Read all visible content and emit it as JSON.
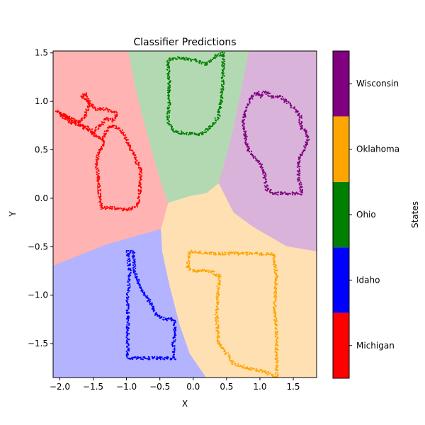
{
  "chart_data": {
    "type": "scatter",
    "title": "Classifier Predictions",
    "xlabel": "X",
    "ylabel": "Y",
    "xlim": [
      -2.1,
      1.85
    ],
    "ylim": [
      -1.85,
      1.52
    ],
    "xticks": [
      -2.0,
      -1.5,
      -1.0,
      -0.5,
      0.0,
      0.5,
      1.0,
      1.5
    ],
    "xtick_labels": [
      "−2.0",
      "−1.5",
      "−1.0",
      "−0.5",
      "0.0",
      "0.5",
      "1.0",
      "1.5"
    ],
    "yticks": [
      -1.5,
      -1.0,
      -0.5,
      0.0,
      0.5,
      1.0,
      1.5
    ],
    "ytick_labels": [
      "−1.5",
      "−1.0",
      "−0.5",
      "0.0",
      "0.5",
      "1.0",
      "1.5"
    ],
    "grid": false,
    "colorbar": {
      "label": "States",
      "classes": [
        {
          "name": "Michigan",
          "color": "#ff0000"
        },
        {
          "name": "Idaho",
          "color": "#0000ff"
        },
        {
          "name": "Ohio",
          "color": "#008000"
        },
        {
          "name": "Oklahoma",
          "color": "#ffa500"
        },
        {
          "name": "Wisconsin",
          "color": "#800080"
        }
      ]
    },
    "regions": [
      {
        "class": "Michigan",
        "fill": "#ffb3b3",
        "polygon": [
          [
            -2.1,
            1.52
          ],
          [
            -0.97,
            1.52
          ],
          [
            -0.85,
            1.1
          ],
          [
            -0.72,
            0.75
          ],
          [
            -0.58,
            0.4
          ],
          [
            -0.45,
            0.1
          ],
          [
            -0.37,
            -0.05
          ],
          [
            -0.42,
            -0.2
          ],
          [
            -0.48,
            -0.32
          ],
          [
            -1.3,
            -0.48
          ],
          [
            -2.1,
            -0.7
          ]
        ]
      },
      {
        "class": "Ohio",
        "fill": "#b3d9b3",
        "polygon": [
          [
            -0.97,
            1.52
          ],
          [
            0.84,
            1.52
          ],
          [
            0.72,
            1.1
          ],
          [
            0.6,
            0.7
          ],
          [
            0.45,
            0.3
          ],
          [
            0.38,
            0.15
          ],
          [
            0.2,
            0.05
          ],
          [
            -0.05,
            0.02
          ],
          [
            -0.37,
            -0.05
          ],
          [
            -0.45,
            0.1
          ],
          [
            -0.58,
            0.4
          ],
          [
            -0.72,
            0.75
          ],
          [
            -0.85,
            1.1
          ]
        ]
      },
      {
        "class": "Wisconsin",
        "fill": "#d9b3d9",
        "polygon": [
          [
            0.84,
            1.52
          ],
          [
            1.85,
            1.52
          ],
          [
            1.85,
            -0.55
          ],
          [
            1.4,
            -0.5
          ],
          [
            0.9,
            -0.3
          ],
          [
            0.6,
            -0.15
          ],
          [
            0.38,
            0.15
          ],
          [
            0.45,
            0.3
          ],
          [
            0.6,
            0.7
          ],
          [
            0.72,
            1.1
          ]
        ]
      },
      {
        "class": "Idaho",
        "fill": "#b3b3ff",
        "polygon": [
          [
            -2.1,
            -0.7
          ],
          [
            -1.3,
            -0.48
          ],
          [
            -0.48,
            -0.32
          ],
          [
            -0.46,
            -0.55
          ],
          [
            -0.35,
            -0.9
          ],
          [
            -0.2,
            -1.3
          ],
          [
            -0.05,
            -1.6
          ],
          [
            0.2,
            -1.85
          ],
          [
            -2.1,
            -1.85
          ]
        ]
      },
      {
        "class": "Oklahoma",
        "fill": "#ffe0b3",
        "polygon": [
          [
            -0.37,
            -0.05
          ],
          [
            -0.05,
            0.02
          ],
          [
            0.2,
            0.05
          ],
          [
            0.38,
            0.15
          ],
          [
            0.6,
            -0.15
          ],
          [
            0.9,
            -0.3
          ],
          [
            1.4,
            -0.5
          ],
          [
            1.85,
            -0.55
          ],
          [
            1.85,
            -1.85
          ],
          [
            0.2,
            -1.85
          ],
          [
            -0.05,
            -1.6
          ],
          [
            -0.2,
            -1.3
          ],
          [
            -0.35,
            -0.9
          ],
          [
            -0.46,
            -0.55
          ],
          [
            -0.48,
            -0.32
          ]
        ]
      }
    ],
    "series": [
      {
        "name": "Michigan",
        "color": "#ff0000",
        "outline": [
          [
            -2.0,
            0.88
          ],
          [
            -1.85,
            0.83
          ],
          [
            -1.72,
            0.78
          ],
          [
            -1.62,
            0.85
          ],
          [
            -1.55,
            0.98
          ],
          [
            -1.62,
            1.08
          ],
          [
            -1.68,
            1.05
          ],
          [
            -1.58,
            1.0
          ],
          [
            -1.45,
            0.92
          ],
          [
            -1.3,
            0.92
          ],
          [
            -1.15,
            0.88
          ],
          [
            -1.2,
            0.8
          ],
          [
            -1.3,
            0.82
          ],
          [
            -1.38,
            0.75
          ],
          [
            -1.45,
            0.72
          ],
          [
            -1.5,
            0.66
          ],
          [
            -1.55,
            0.72
          ],
          [
            -1.62,
            0.74
          ],
          [
            -1.75,
            0.76
          ],
          [
            -1.88,
            0.8
          ],
          [
            -1.98,
            0.86
          ],
          [
            -2.05,
            0.9
          ],
          [
            -1.35,
            0.6
          ],
          [
            -1.3,
            0.7
          ],
          [
            -1.2,
            0.75
          ],
          [
            -1.08,
            0.7
          ],
          [
            -0.98,
            0.58
          ],
          [
            -0.85,
            0.38
          ],
          [
            -0.78,
            0.3
          ],
          [
            -0.8,
            0.15
          ],
          [
            -0.8,
            0.05
          ],
          [
            -0.82,
            -0.05
          ],
          [
            -0.9,
            -0.1
          ],
          [
            -1.0,
            -0.12
          ],
          [
            -1.2,
            -0.1
          ],
          [
            -1.38,
            -0.1
          ],
          [
            -1.4,
            0.0
          ],
          [
            -1.42,
            0.2
          ],
          [
            -1.45,
            0.35
          ],
          [
            -1.42,
            0.48
          ],
          [
            -1.35,
            0.55
          ],
          [
            -1.35,
            0.6
          ]
        ]
      },
      {
        "name": "Ohio",
        "color": "#008000",
        "outline": [
          [
            -0.38,
            1.43
          ],
          [
            -0.2,
            1.45
          ],
          [
            0.05,
            1.42
          ],
          [
            0.2,
            1.38
          ],
          [
            0.35,
            1.47
          ],
          [
            0.45,
            1.5
          ],
          [
            0.45,
            1.3
          ],
          [
            0.42,
            1.0
          ],
          [
            0.38,
            0.85
          ],
          [
            0.28,
            0.75
          ],
          [
            0.15,
            0.68
          ],
          [
            0.08,
            0.65
          ],
          [
            0.0,
            0.67
          ],
          [
            -0.15,
            0.67
          ],
          [
            -0.3,
            0.7
          ],
          [
            -0.38,
            0.8
          ],
          [
            -0.36,
            1.0
          ],
          [
            -0.36,
            1.2
          ],
          [
            -0.38,
            1.43
          ]
        ]
      },
      {
        "name": "Wisconsin",
        "color": "#800080",
        "outline": [
          [
            1.08,
            1.1
          ],
          [
            1.18,
            1.05
          ],
          [
            1.3,
            1.05
          ],
          [
            1.38,
            1.0
          ],
          [
            1.48,
            0.95
          ],
          [
            1.55,
            0.9
          ],
          [
            1.6,
            0.85
          ],
          [
            1.62,
            0.72
          ],
          [
            1.7,
            0.7
          ],
          [
            1.72,
            0.6
          ],
          [
            1.65,
            0.5
          ],
          [
            1.58,
            0.4
          ],
          [
            1.58,
            0.2
          ],
          [
            1.62,
            0.1
          ],
          [
            1.62,
            0.05
          ],
          [
            1.5,
            0.05
          ],
          [
            1.2,
            0.05
          ],
          [
            1.1,
            0.1
          ],
          [
            1.05,
            0.3
          ],
          [
            0.95,
            0.4
          ],
          [
            0.82,
            0.5
          ],
          [
            0.78,
            0.65
          ],
          [
            0.75,
            0.8
          ],
          [
            0.8,
            0.95
          ],
          [
            0.88,
            1.05
          ],
          [
            0.98,
            1.1
          ],
          [
            1.02,
            1.05
          ],
          [
            1.08,
            1.1
          ]
        ]
      },
      {
        "name": "Idaho",
        "color": "#0000ff",
        "outline": [
          [
            -0.98,
            -0.55
          ],
          [
            -0.9,
            -0.55
          ],
          [
            -0.88,
            -0.75
          ],
          [
            -0.8,
            -0.9
          ],
          [
            -0.72,
            -1.0
          ],
          [
            -0.62,
            -1.1
          ],
          [
            -0.55,
            -1.2
          ],
          [
            -0.42,
            -1.25
          ],
          [
            -0.28,
            -1.25
          ],
          [
            -0.28,
            -1.4
          ],
          [
            -0.3,
            -1.55
          ],
          [
            -0.28,
            -1.65
          ],
          [
            -0.5,
            -1.65
          ],
          [
            -0.8,
            -1.65
          ],
          [
            -0.98,
            -1.65
          ],
          [
            -0.98,
            -1.3
          ],
          [
            -0.98,
            -1.0
          ],
          [
            -0.95,
            -0.8
          ],
          [
            -0.98,
            -0.55
          ]
        ]
      },
      {
        "name": "Oklahoma",
        "color": "#ffa500",
        "outline": [
          [
            -0.05,
            -0.55
          ],
          [
            0.3,
            -0.57
          ],
          [
            0.6,
            -0.57
          ],
          [
            0.95,
            -0.57
          ],
          [
            1.2,
            -0.58
          ],
          [
            1.25,
            -0.8
          ],
          [
            1.22,
            -1.1
          ],
          [
            1.25,
            -1.4
          ],
          [
            1.25,
            -1.6
          ],
          [
            1.25,
            -1.85
          ],
          [
            1.1,
            -1.8
          ],
          [
            0.95,
            -1.77
          ],
          [
            0.8,
            -1.75
          ],
          [
            0.6,
            -1.7
          ],
          [
            0.5,
            -1.6
          ],
          [
            0.38,
            -1.5
          ],
          [
            0.35,
            -1.2
          ],
          [
            0.38,
            -0.9
          ],
          [
            0.4,
            -0.8
          ],
          [
            0.25,
            -0.75
          ],
          [
            0.0,
            -0.75
          ],
          [
            -0.08,
            -0.7
          ],
          [
            -0.05,
            -0.55
          ]
        ]
      }
    ]
  }
}
